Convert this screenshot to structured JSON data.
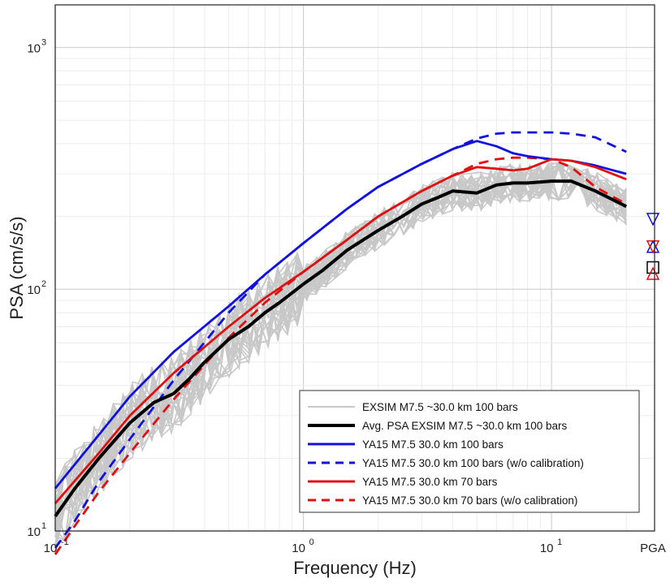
{
  "chart_data": {
    "type": "line",
    "xscale": "log",
    "yscale": "log",
    "xlim": [
      0.1,
      26
    ],
    "ylim": [
      10,
      1500
    ],
    "xlabel": "Frequency (Hz)",
    "ylabel": "PSA (cm/s/s)",
    "x_ticks": [
      {
        "value": 0.1,
        "base": "10",
        "exp": "-1"
      },
      {
        "value": 1,
        "base": "10",
        "exp": "0"
      },
      {
        "value": 10,
        "base": "10",
        "exp": "1"
      }
    ],
    "y_ticks": [
      {
        "value": 10,
        "base": "10",
        "exp": "1"
      },
      {
        "value": 100,
        "base": "10",
        "exp": "2"
      },
      {
        "value": 1000,
        "base": "10",
        "exp": "3"
      }
    ],
    "pga_label": "PGA",
    "grid": true,
    "legend_position": "bottom-right",
    "series": [
      {
        "name": "EXSIM M7.5 ~30.0 km 100 bars",
        "color": "#c8c8c8",
        "style": "solid",
        "width": 1.6,
        "x": [
          0.1,
          0.2,
          0.5,
          1,
          2,
          5,
          10,
          20
        ],
        "y": [
          11,
          30,
          70,
          110,
          170,
          240,
          260,
          210
        ]
      },
      {
        "name": "Avg. PSA EXSIM M7.5 ~30.0 km 100 bars",
        "color": "#000000",
        "style": "solid",
        "width": 4,
        "x": [
          0.1,
          0.12,
          0.15,
          0.2,
          0.25,
          0.3,
          0.35,
          0.4,
          0.5,
          0.6,
          0.7,
          0.8,
          1.0,
          1.2,
          1.5,
          2.0,
          2.5,
          3.0,
          3.5,
          4.0,
          5.0,
          6.0,
          7.0,
          8.0,
          10.0,
          12.0,
          15.0,
          20.0
        ],
        "y": [
          11.5,
          15,
          20,
          28,
          34,
          37,
          43,
          50,
          62,
          70,
          80,
          88,
          105,
          120,
          145,
          175,
          200,
          225,
          240,
          255,
          250,
          270,
          275,
          275,
          280,
          280,
          255,
          220
        ]
      },
      {
        "name": "YA15 M7.5 30.0 km 100 bars",
        "color": "#1010e0",
        "style": "solid",
        "width": 2.8,
        "x": [
          0.1,
          0.15,
          0.2,
          0.3,
          0.5,
          0.7,
          1.0,
          1.5,
          2.0,
          3.0,
          4.0,
          5.0,
          6.0,
          7.0,
          8.0,
          10.0,
          12.0,
          15.0,
          20.0
        ],
        "y": [
          15,
          25,
          36,
          55,
          85,
          115,
          155,
          215,
          265,
          330,
          380,
          410,
          390,
          365,
          355,
          345,
          340,
          325,
          300
        ]
      },
      {
        "name": "YA15 M7.5 30.0 km 100 bars (w/o calibration)",
        "color": "#1010e0",
        "style": "dashed",
        "width": 2.8,
        "x": [
          0.1,
          0.12,
          0.15,
          0.2,
          0.3,
          0.5,
          0.7,
          1.0,
          1.5,
          2.0,
          3.0,
          4.0,
          5.0,
          6.0,
          7.0,
          8.0,
          10.0,
          12.0,
          15.0,
          20.0
        ],
        "y": [
          8.5,
          11,
          16,
          24,
          42,
          80,
          115,
          155,
          215,
          265,
          330,
          380,
          420,
          440,
          445,
          445,
          445,
          440,
          425,
          370
        ]
      },
      {
        "name": "YA15 M7.5 30.0 km 70 bars",
        "color": "#e01010",
        "style": "solid",
        "width": 2.8,
        "x": [
          0.1,
          0.15,
          0.2,
          0.3,
          0.5,
          0.7,
          1.0,
          1.5,
          2.0,
          3.0,
          4.0,
          5.0,
          6.0,
          7.0,
          8.0,
          10.0,
          12.0,
          15.0,
          20.0
        ],
        "y": [
          13,
          21,
          30,
          45,
          70,
          92,
          118,
          160,
          200,
          255,
          295,
          320,
          315,
          310,
          315,
          345,
          340,
          320,
          285
        ]
      },
      {
        "name": "YA15 M7.5 30.0 km 70 bars (w/o calibration)",
        "color": "#e01010",
        "style": "dashed",
        "width": 2.8,
        "x": [
          0.1,
          0.12,
          0.15,
          0.2,
          0.3,
          0.5,
          0.7,
          1.0,
          1.5,
          2.0,
          3.0,
          4.0,
          5.0,
          6.0,
          7.0,
          8.0,
          10.0,
          12.0,
          15.0,
          20.0
        ],
        "y": [
          8,
          10.5,
          14.5,
          21,
          35,
          63,
          88,
          118,
          160,
          200,
          255,
          295,
          330,
          345,
          350,
          350,
          345,
          320,
          265,
          225
        ]
      }
    ],
    "pga_markers": [
      {
        "series": "YA15 M7.5 30.0 km 100 bars",
        "marker": "triangle-down",
        "color": "#1010e0",
        "value": 195
      },
      {
        "series": "YA15 M7.5 30.0 km 100 bars (w/o calibration)",
        "marker": "triangle-up",
        "color": "#1010e0",
        "value": 150
      },
      {
        "series": "YA15 M7.5 30.0 km 70 bars",
        "marker": "triangle-down",
        "color": "#e01010",
        "value": 150
      },
      {
        "series": "Avg. PSA EXSIM M7.5 ~30.0 km 100 bars",
        "marker": "square",
        "color": "#000000",
        "value": 123
      },
      {
        "series": "YA15 M7.5 30.0 km 70 bars (w/o calibration)",
        "marker": "triangle-up",
        "color": "#e01010",
        "value": 116
      }
    ]
  }
}
